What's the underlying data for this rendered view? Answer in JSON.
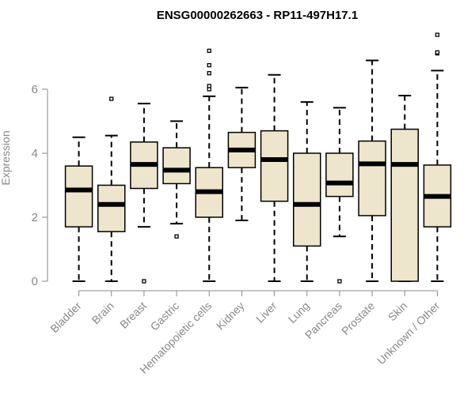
{
  "chart_data": {
    "type": "boxplot",
    "title": "ENSG00000262663 - RP11-497H17.1",
    "xlabel": "",
    "ylabel": "Expression",
    "ylim": [
      0,
      7.8
    ],
    "yticks": [
      0,
      2,
      4,
      6
    ],
    "colors": {
      "box_fill": "#ede6cc",
      "median": "#000000",
      "axis": "#888888"
    },
    "series": [
      {
        "category": "Bladder",
        "min": 0.0,
        "q1": 1.7,
        "median": 2.85,
        "q3": 3.6,
        "max": 4.5,
        "outliers": []
      },
      {
        "category": "Brain",
        "min": 0.0,
        "q1": 1.55,
        "median": 2.4,
        "q3": 3.0,
        "max": 4.55,
        "outliers": [
          5.7
        ]
      },
      {
        "category": "Breast",
        "min": 1.7,
        "q1": 2.9,
        "median": 3.65,
        "q3": 4.35,
        "max": 5.55,
        "outliers": [
          0.0
        ]
      },
      {
        "category": "Gastric",
        "min": 1.8,
        "q1": 3.05,
        "median": 3.47,
        "q3": 4.17,
        "max": 5.0,
        "outliers": [
          1.4
        ]
      },
      {
        "category": "Hematopoietic cells",
        "min": 0.0,
        "q1": 2.0,
        "median": 2.8,
        "q3": 3.55,
        "max": 5.78,
        "outliers": [
          6.0,
          6.1,
          6.5,
          6.75,
          7.2
        ]
      },
      {
        "category": "Kidney",
        "min": 1.9,
        "q1": 3.55,
        "median": 4.1,
        "q3": 4.65,
        "max": 6.05,
        "outliers": []
      },
      {
        "category": "Liver",
        "min": 0.0,
        "q1": 2.5,
        "median": 3.8,
        "q3": 4.7,
        "max": 6.45,
        "outliers": []
      },
      {
        "category": "Lung",
        "min": 0.0,
        "q1": 1.1,
        "median": 2.4,
        "q3": 4.0,
        "max": 5.6,
        "outliers": []
      },
      {
        "category": "Pancreas",
        "min": 1.4,
        "q1": 2.65,
        "median": 3.07,
        "q3": 4.0,
        "max": 5.42,
        "outliers": [
          0.0
        ]
      },
      {
        "category": "Prostate",
        "min": 0.0,
        "q1": 2.05,
        "median": 3.67,
        "q3": 4.38,
        "max": 6.9,
        "outliers": []
      },
      {
        "category": "Skin",
        "min": 0.0,
        "q1": 0.0,
        "median": 3.65,
        "q3": 4.75,
        "max": 5.8,
        "outliers": []
      },
      {
        "category": "Unknown / Other",
        "min": 0.0,
        "q1": 1.7,
        "median": 2.65,
        "q3": 3.63,
        "max": 6.58,
        "outliers": [
          7.12,
          7.15,
          7.7
        ]
      }
    ]
  }
}
